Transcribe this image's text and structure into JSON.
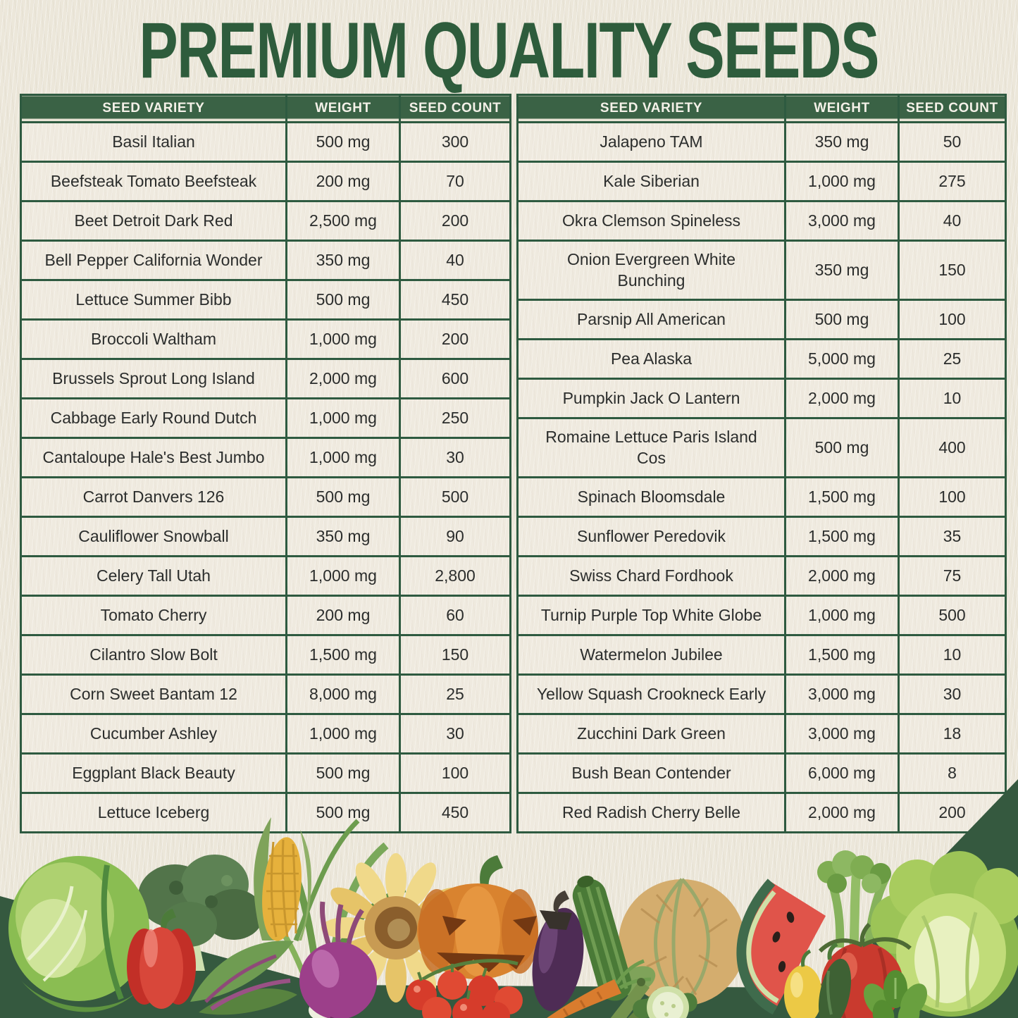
{
  "page": {
    "title": "PREMIUM QUALITY SEEDS"
  },
  "table_headers": [
    "SEED VARIETY",
    "WEIGHT",
    "SEED COUNT"
  ],
  "tables": [
    {
      "rows": [
        {
          "variety": "Basil Italian",
          "weight": "500 mg",
          "count": "300"
        },
        {
          "variety": "Beefsteak Tomato Beefsteak",
          "weight": "200 mg",
          "count": "70"
        },
        {
          "variety": "Beet Detroit Dark Red",
          "weight": "2,500 mg",
          "count": "200"
        },
        {
          "variety": "Bell Pepper California Wonder",
          "weight": "350 mg",
          "count": "40"
        },
        {
          "variety": "Lettuce Summer Bibb",
          "weight": "500 mg",
          "count": "450"
        },
        {
          "variety": "Broccoli Waltham",
          "weight": "1,000 mg",
          "count": "200"
        },
        {
          "variety": "Brussels Sprout Long Island",
          "weight": "2,000 mg",
          "count": "600"
        },
        {
          "variety": "Cabbage Early Round Dutch",
          "weight": "1,000 mg",
          "count": "250"
        },
        {
          "variety": "Cantaloupe Hale's Best Jumbo",
          "weight": "1,000 mg",
          "count": "30"
        },
        {
          "variety": "Carrot Danvers 126",
          "weight": "500 mg",
          "count": "500"
        },
        {
          "variety": "Cauliflower Snowball",
          "weight": "350 mg",
          "count": "90"
        },
        {
          "variety": "Celery Tall Utah",
          "weight": "1,000 mg",
          "count": "2,800"
        },
        {
          "variety": "Tomato Cherry",
          "weight": "200 mg",
          "count": "60"
        },
        {
          "variety": "Cilantro Slow Bolt",
          "weight": "1,500 mg",
          "count": "150"
        },
        {
          "variety": "Corn Sweet Bantam 12",
          "weight": "8,000 mg",
          "count": "25"
        },
        {
          "variety": "Cucumber Ashley",
          "weight": "1,000 mg",
          "count": "30"
        },
        {
          "variety": "Eggplant Black Beauty",
          "weight": "500 mg",
          "count": "100"
        },
        {
          "variety": "Lettuce Iceberg",
          "weight": "500 mg",
          "count": "450"
        }
      ]
    },
    {
      "rows": [
        {
          "variety": "Jalapeno TAM",
          "weight": "350 mg",
          "count": "50"
        },
        {
          "variety": "Kale Siberian",
          "weight": "1,000 mg",
          "count": "275"
        },
        {
          "variety": "Okra Clemson Spineless",
          "weight": "3,000 mg",
          "count": "40"
        },
        {
          "variety": "Onion Evergreen White\nBunching",
          "weight": "350 mg",
          "count": "150"
        },
        {
          "variety": "Parsnip All American",
          "weight": "500 mg",
          "count": "100"
        },
        {
          "variety": "Pea Alaska",
          "weight": "5,000 mg",
          "count": "25"
        },
        {
          "variety": "Pumpkin Jack O Lantern",
          "weight": "2,000 mg",
          "count": "10"
        },
        {
          "variety": "Romaine Lettuce Paris Island\nCos",
          "weight": "500 mg",
          "count": "400"
        },
        {
          "variety": "Spinach Bloomsdale",
          "weight": "1,500 mg",
          "count": "100"
        },
        {
          "variety": "Sunflower Peredovik",
          "weight": "1,500 mg",
          "count": "35"
        },
        {
          "variety": "Swiss Chard Fordhook",
          "weight": "2,000 mg",
          "count": "75"
        },
        {
          "variety": "Turnip Purple Top White Globe",
          "weight": "1,000 mg",
          "count": "500"
        },
        {
          "variety": "Watermelon Jubilee",
          "weight": "1,500 mg",
          "count": "10"
        },
        {
          "variety": "Yellow Squash Crookneck Early",
          "weight": "3,000 mg",
          "count": "30"
        },
        {
          "variety": "Zucchini Dark Green",
          "weight": "3,000 mg",
          "count": "18"
        },
        {
          "variety": "Bush Bean Contender",
          "weight": "6,000 mg",
          "count": "8"
        },
        {
          "variety": "Red Radish Cherry Belle",
          "weight": "2,000 mg",
          "count": "200"
        }
      ]
    }
  ],
  "colors": {
    "title_green": "#2e5c3c",
    "header_green": "#3a6245",
    "border_green": "#2e5a40",
    "footer_green": "#35593f",
    "paper": "#ece7da",
    "ink": "#2b2d2c"
  },
  "footer": {
    "vegetables": [
      "cabbage",
      "red-bell-pepper",
      "broccoli",
      "beet-greens",
      "corn",
      "green-onion",
      "purple-turnip",
      "sunflower",
      "cherry-tomatoes",
      "jack-o-lantern-pumpkin",
      "eggplant",
      "zucchini",
      "carrot",
      "okra",
      "cantaloupe",
      "cucumber",
      "watermelon-slice",
      "yellow-squash",
      "jalapeno",
      "celery",
      "heirloom-tomato",
      "basil",
      "iceberg-lettuce"
    ]
  }
}
